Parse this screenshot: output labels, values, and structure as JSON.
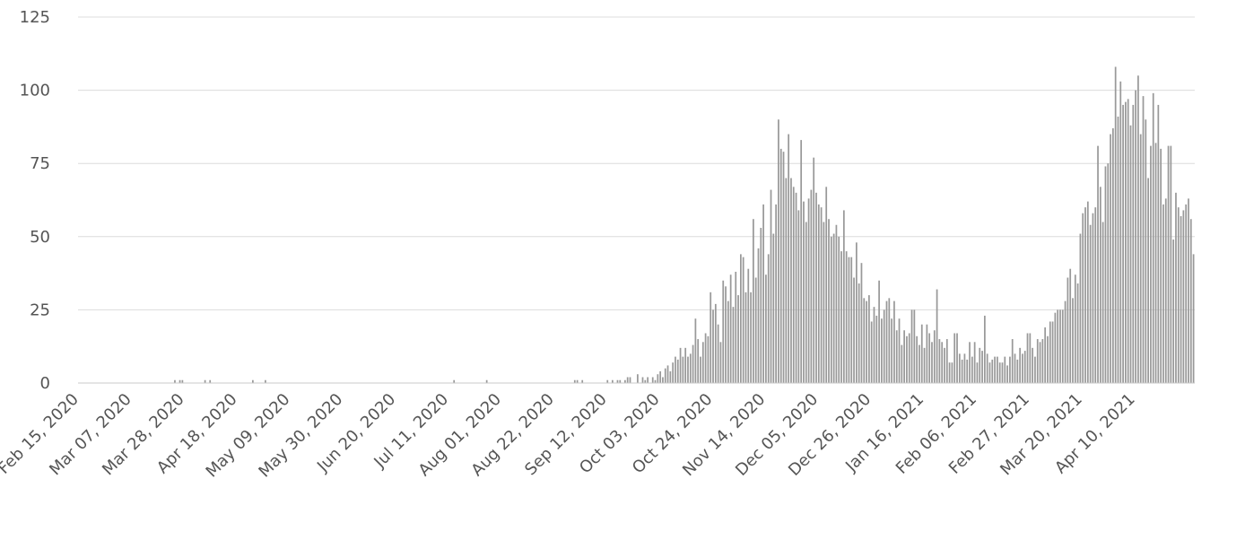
{
  "chart_data": {
    "type": "bar",
    "title": "",
    "xlabel": "",
    "ylabel": "",
    "x_start": "Feb 15, 2020",
    "x_end": "Apr 23, 2021",
    "ylim": [
      0,
      125
    ],
    "y_ticks": [
      0,
      25,
      50,
      75,
      100,
      125
    ],
    "x_tick_labels": [
      "Feb 15, 2020",
      "Mar 07, 2020",
      "Mar 28, 2020",
      "Apr 18, 2020",
      "May 09, 2020",
      "May 30, 2020",
      "Jun 20, 2020",
      "Jul 11, 2020",
      "Aug 01, 2020",
      "Aug 22, 2020",
      "Sep 12, 2020",
      "Oct 03, 2020",
      "Oct 24, 2020",
      "Nov 14, 2020",
      "Dec 05, 2020",
      "Dec 26, 2020",
      "Jan 16, 2021",
      "Feb 06, 2021",
      "Feb 27, 2021",
      "Mar 20, 2021",
      "Apr 10, 2021"
    ],
    "grid": true,
    "legend": "none",
    "bar_color": "#999999",
    "grid_color": "#dcdcdc",
    "text_color": "#555555",
    "values": [
      0,
      0,
      0,
      0,
      0,
      0,
      0,
      0,
      0,
      0,
      0,
      0,
      0,
      0,
      0,
      0,
      0,
      0,
      0,
      0,
      0,
      0,
      0,
      0,
      0,
      0,
      0,
      0,
      0,
      0,
      0,
      0,
      0,
      0,
      0,
      0,
      0,
      0,
      1,
      0,
      1,
      1,
      0,
      0,
      0,
      0,
      0,
      0,
      0,
      0,
      1,
      0,
      1,
      0,
      0,
      0,
      0,
      0,
      0,
      0,
      0,
      0,
      0,
      0,
      0,
      0,
      0,
      0,
      0,
      1,
      0,
      0,
      0,
      0,
      1,
      0,
      0,
      0,
      0,
      0,
      0,
      0,
      0,
      0,
      0,
      0,
      0,
      0,
      0,
      0,
      0,
      0,
      0,
      0,
      0,
      0,
      0,
      0,
      0,
      0,
      0,
      0,
      0,
      0,
      0,
      0,
      0,
      0,
      0,
      0,
      0,
      0,
      0,
      0,
      0,
      0,
      0,
      0,
      0,
      0,
      0,
      0,
      0,
      0,
      0,
      0,
      0,
      0,
      0,
      0,
      0,
      0,
      0,
      0,
      0,
      0,
      0,
      0,
      0,
      0,
      0,
      0,
      0,
      0,
      0,
      0,
      0,
      0,
      0,
      1,
      0,
      0,
      0,
      0,
      0,
      0,
      0,
      0,
      0,
      0,
      0,
      0,
      1,
      0,
      0,
      0,
      0,
      0,
      0,
      0,
      0,
      0,
      0,
      0,
      0,
      0,
      0,
      0,
      0,
      0,
      0,
      0,
      0,
      0,
      0,
      0,
      0,
      0,
      0,
      0,
      0,
      0,
      0,
      0,
      0,
      0,
      0,
      1,
      1,
      0,
      1,
      0,
      0,
      0,
      0,
      0,
      0,
      0,
      0,
      0,
      1,
      0,
      1,
      0,
      1,
      1,
      0,
      1,
      2,
      2,
      0,
      0,
      3,
      0,
      2,
      1,
      2,
      0,
      2,
      1,
      3,
      4,
      2,
      5,
      6,
      4,
      7,
      9,
      8,
      12,
      9,
      12,
      9,
      10,
      13,
      22,
      15,
      9,
      14,
      17,
      16,
      31,
      25,
      27,
      20,
      14,
      35,
      33,
      28,
      37,
      26,
      38,
      30,
      44,
      43,
      31,
      39,
      31,
      56,
      36,
      46,
      53,
      61,
      37,
      44,
      66,
      51,
      61,
      90,
      80,
      79,
      70,
      85,
      70,
      67,
      65,
      59,
      83,
      62,
      55,
      63,
      66,
      77,
      65,
      61,
      60,
      55,
      67,
      56,
      50,
      51,
      54,
      50,
      45,
      59,
      45,
      43,
      43,
      36,
      48,
      34,
      41,
      29,
      28,
      30,
      21,
      26,
      23,
      35,
      22,
      25,
      28,
      29,
      22,
      28,
      18,
      22,
      13,
      18,
      16,
      17,
      25,
      25,
      16,
      13,
      20,
      12,
      20,
      17,
      14,
      18,
      32,
      15,
      14,
      12,
      15,
      7,
      7,
      17,
      17,
      10,
      8,
      10,
      8,
      14,
      9,
      14,
      7,
      12,
      11,
      23,
      10,
      7,
      8,
      9,
      9,
      7,
      7,
      9,
      6,
      9,
      15,
      10,
      8,
      12,
      10,
      11,
      17,
      17,
      12,
      9,
      15,
      14,
      15,
      19,
      16,
      21,
      21,
      24,
      25,
      25,
      25,
      28,
      36,
      39,
      29,
      37,
      34,
      51,
      58,
      60,
      62,
      54,
      58,
      60,
      81,
      67,
      55,
      74,
      75,
      85,
      87,
      108,
      91,
      103,
      95,
      96,
      97,
      88,
      95,
      100,
      105,
      85,
      98,
      90,
      70,
      81,
      99,
      82,
      95,
      80,
      61,
      63,
      81,
      81,
      49,
      65,
      60,
      57,
      59,
      61,
      63,
      56,
      44
    ]
  }
}
